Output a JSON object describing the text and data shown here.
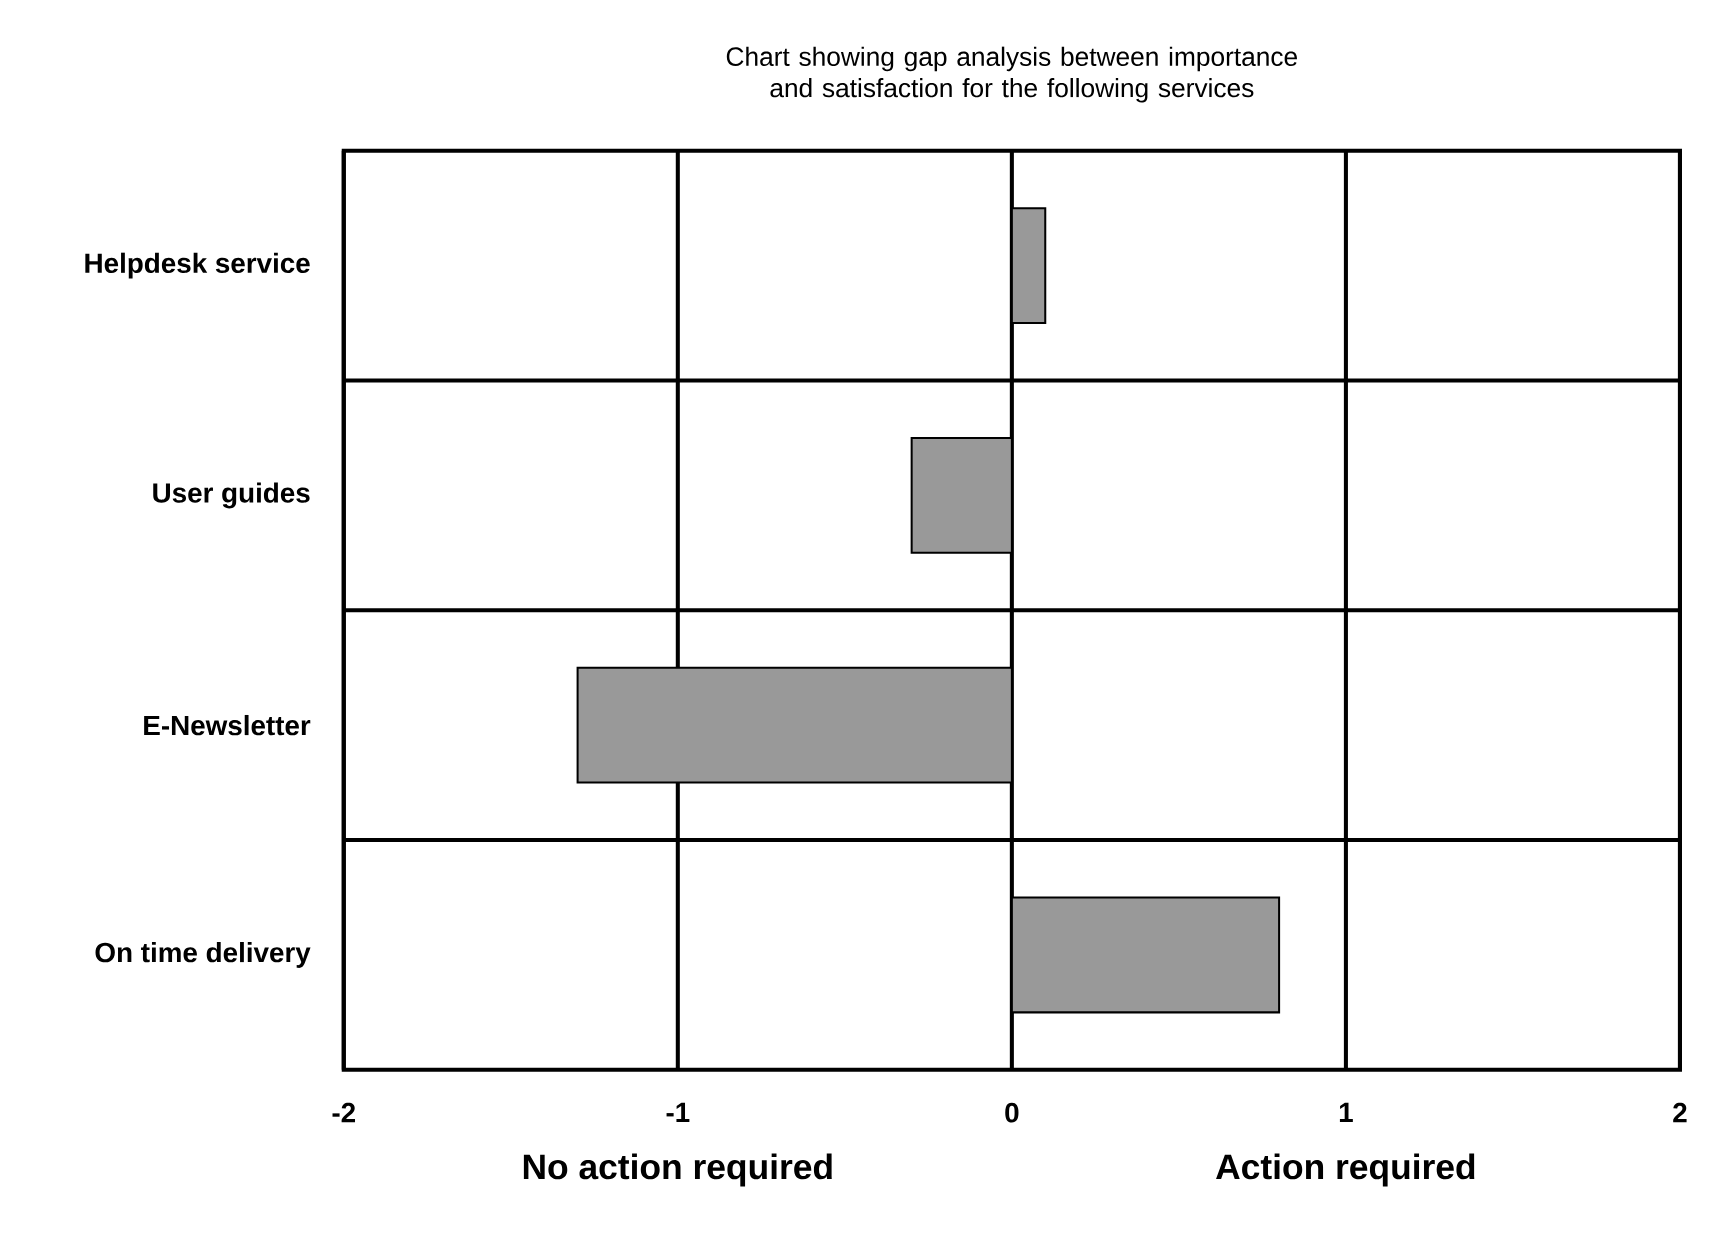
{
  "chart_data": {
    "type": "bar",
    "orientation": "horizontal",
    "title": "Chart showing gap analysis between importance and satisfaction for the following services",
    "categories": [
      "Helpdesk service",
      "User guides",
      "E-Newsletter",
      "On time delivery"
    ],
    "values": [
      0.1,
      -0.3,
      -1.3,
      0.8
    ],
    "color": "#999999",
    "xlim": [
      -2,
      2
    ],
    "xticks": [
      -2,
      -1,
      0,
      1,
      2
    ],
    "grid": true,
    "annotations": [
      "No action required",
      "Action required"
    ]
  }
}
